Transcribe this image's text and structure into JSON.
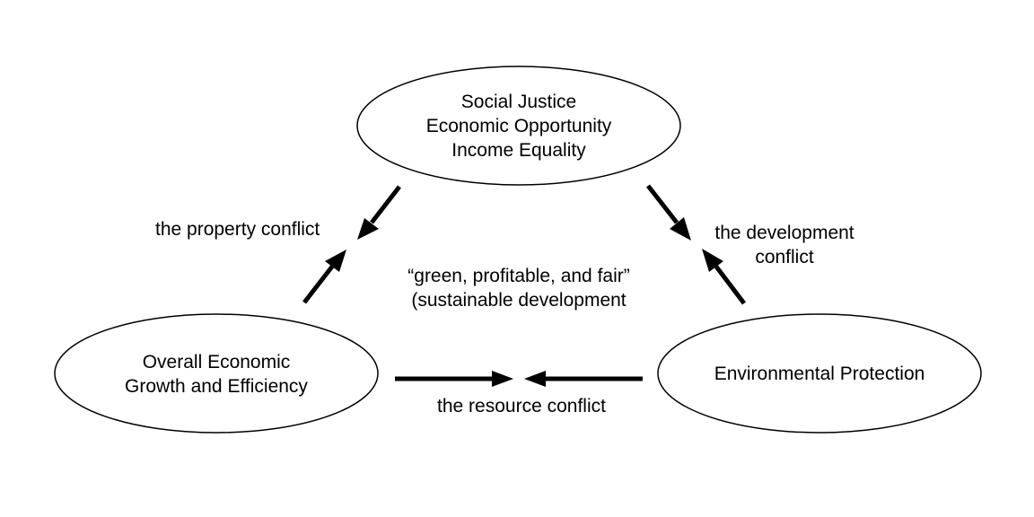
{
  "nodes": {
    "social": {
      "lines": [
        "Social Justice",
        "Economic Opportunity",
        "Income Equality"
      ]
    },
    "economic": {
      "lines": [
        "Overall Economic",
        "Growth and Efficiency"
      ]
    },
    "environmental": {
      "lines": [
        "Environmental Protection"
      ]
    }
  },
  "conflicts": {
    "property": {
      "lines": [
        "the property conflict"
      ]
    },
    "development": {
      "lines": [
        "the development",
        "conflict"
      ]
    },
    "resource": {
      "lines": [
        "the resource conflict"
      ]
    }
  },
  "center": {
    "lines": [
      "“green, profitable, and fair”",
      "(sustainable development"
    ]
  }
}
